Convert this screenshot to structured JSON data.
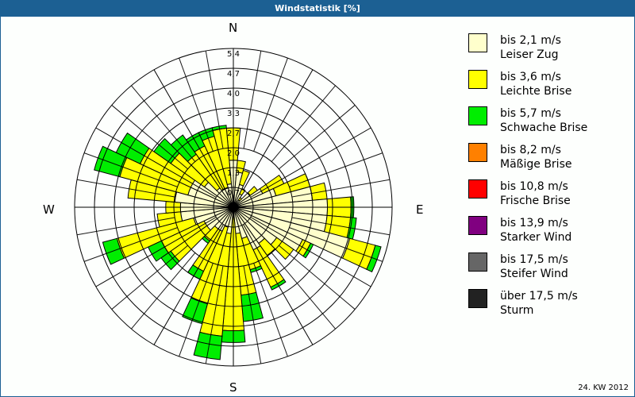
{
  "window": {
    "title": "Windstatistik [%]"
  },
  "directions": {
    "n": "N",
    "e": "E",
    "s": "S",
    "w": "W"
  },
  "footer": {
    "period": "24. KW 2012"
  },
  "legend": [
    {
      "range": "bis 2,1 m/s",
      "name": "Leiser Zug",
      "color": "#ffffcc"
    },
    {
      "range": "bis 3,6 m/s",
      "name": "Leichte Brise",
      "color": "#ffff00"
    },
    {
      "range": "bis 5,7 m/s",
      "name": "Schwache Brise",
      "color": "#00ee00"
    },
    {
      "range": "bis 8,2 m/s",
      "name": "Mäßige Brise",
      "color": "#ff8000"
    },
    {
      "range": "bis 10,8 m/s",
      "name": "Frische Brise",
      "color": "#ff0000"
    },
    {
      "range": "bis 13,9 m/s",
      "name": "Starker Wind",
      "color": "#800080"
    },
    {
      "range": "bis 17,5 m/s",
      "name": "Steifer Wind",
      "color": "#666666"
    },
    {
      "range": "über 17,5 m/s",
      "name": "Sturm",
      "color": "#222222"
    }
  ],
  "chart_data": {
    "type": "wind-rose",
    "title": "Windstatistik [%]",
    "subtitle": "24. KW 2012",
    "radial_ticks": [
      "0,7",
      "1,3",
      "2,0",
      "2,7",
      "3,3",
      "4,0",
      "4,7",
      "5,4"
    ],
    "radial_range": [
      0,
      5.4
    ],
    "sector_width_deg": 10,
    "directions_deg": [
      0,
      10,
      20,
      30,
      40,
      50,
      60,
      70,
      80,
      90,
      100,
      110,
      120,
      130,
      140,
      150,
      160,
      170,
      180,
      190,
      200,
      210,
      220,
      230,
      240,
      250,
      260,
      270,
      280,
      290,
      300,
      310,
      320,
      330,
      340,
      350
    ],
    "series": [
      {
        "name": "bis 2,1 m/s Leiser Zug",
        "values": [
          1.6,
          1.2,
          0.8,
          0.5,
          0.3,
          0.7,
          1.1,
          1.5,
          2.7,
          3.2,
          3.2,
          4.1,
          2.6,
          1.8,
          1.5,
          1.6,
          1.1,
          0.9,
          0.3,
          0.9,
          0.7,
          0.9,
          0.9,
          1.1,
          1.1,
          1.4,
          1.8,
          1.8,
          2.0,
          1.6,
          1.6,
          1.2,
          0.8,
          0.7,
          0.7,
          0.8
        ]
      },
      {
        "name": "bis 3,6 m/s Leichte Brise",
        "values": [
          1.1,
          0.4,
          0.5,
          0.2,
          0.1,
          0.3,
          0.8,
          1.2,
          0.5,
          0.8,
          0.8,
          0.9,
          0.3,
          0.7,
          0.5,
          1.4,
          1.1,
          2.1,
          3.9,
          3.5,
          2.7,
          1.5,
          0.5,
          1.5,
          1.6,
          2.7,
          0.8,
          0.5,
          1.6,
          2.4,
          1.9,
          1.4,
          1.4,
          1.6,
          1.8,
          1.9
        ]
      },
      {
        "name": "bis 5,7 m/s Schwache Brise",
        "values": [
          0.0,
          0.0,
          0.0,
          0.0,
          0.0,
          0.0,
          0.0,
          0.0,
          0.0,
          0.1,
          0.2,
          0.2,
          0.1,
          0.0,
          0.0,
          0.1,
          0.1,
          0.9,
          0.4,
          0.8,
          0.7,
          0.3,
          0.1,
          0.4,
          0.5,
          0.5,
          0.0,
          0.0,
          0.0,
          0.9,
          0.9,
          0.7,
          0.8,
          0.5,
          0.3,
          0.1
        ]
      },
      {
        "name": "bis 8,2 m/s Mäßige Brise",
        "values": [
          0,
          0,
          0,
          0,
          0,
          0,
          0,
          0,
          0,
          0,
          0,
          0,
          0,
          0,
          0,
          0,
          0,
          0,
          0,
          0,
          0,
          0,
          0,
          0,
          0,
          0,
          0,
          0,
          0,
          0,
          0,
          0,
          0,
          0,
          0,
          0
        ]
      },
      {
        "name": "bis 10,8 m/s Frische Brise",
        "values": [
          0,
          0,
          0,
          0,
          0,
          0,
          0,
          0,
          0,
          0,
          0,
          0,
          0,
          0,
          0,
          0,
          0,
          0,
          0,
          0,
          0,
          0,
          0,
          0,
          0,
          0,
          0,
          0,
          0,
          0,
          0,
          0,
          0,
          0,
          0,
          0
        ]
      },
      {
        "name": "bis 13,9 m/s Starker Wind",
        "values": [
          0,
          0,
          0,
          0,
          0,
          0,
          0,
          0,
          0,
          0,
          0,
          0,
          0,
          0,
          0,
          0,
          0,
          0,
          0,
          0,
          0,
          0,
          0,
          0,
          0,
          0,
          0,
          0,
          0,
          0,
          0,
          0,
          0,
          0,
          0,
          0
        ]
      },
      {
        "name": "bis 17,5 m/s Steifer Wind",
        "values": [
          0,
          0,
          0,
          0,
          0,
          0,
          0,
          0,
          0,
          0,
          0,
          0,
          0,
          0,
          0,
          0,
          0,
          0,
          0,
          0,
          0,
          0,
          0,
          0,
          0,
          0,
          0,
          0,
          0,
          0,
          0,
          0,
          0,
          0,
          0,
          0
        ]
      },
      {
        "name": "über 17,5 m/s Sturm",
        "values": [
          0,
          0,
          0,
          0,
          0,
          0,
          0,
          0,
          0,
          0,
          0,
          0,
          0,
          0,
          0,
          0,
          0,
          0,
          0,
          0,
          0,
          0,
          0,
          0,
          0,
          0,
          0,
          0,
          0,
          0,
          0,
          0,
          0,
          0,
          0,
          0
        ]
      }
    ],
    "grid": true,
    "legend_position": "right"
  }
}
